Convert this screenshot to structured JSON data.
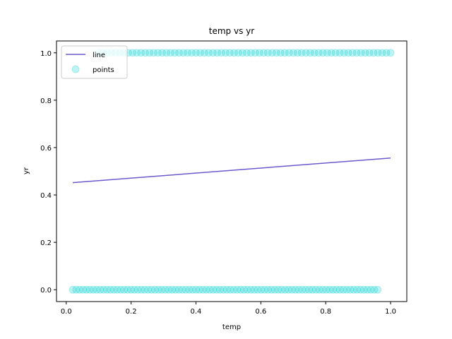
{
  "chart_data": {
    "type": "scatter",
    "title": "temp vs yr",
    "xlabel": "temp",
    "ylabel": "yr",
    "xlim": [
      -0.03,
      1.05
    ],
    "ylim": [
      -0.05,
      1.05
    ],
    "xticks": [
      0.0,
      0.2,
      0.4,
      0.6,
      0.8,
      1.0
    ],
    "yticks": [
      0.0,
      0.2,
      0.4,
      0.6,
      0.8,
      1.0
    ],
    "grid": false,
    "legend_position": "top-left",
    "series": [
      {
        "name": "line",
        "kind": "line",
        "color": "#6a5acd",
        "x": [
          0.02,
          1.0
        ],
        "y": [
          0.452,
          0.556
        ]
      },
      {
        "name": "points",
        "kind": "scatter",
        "color": "#00ced1",
        "opacity": 0.25,
        "groups": [
          {
            "y": 1.0,
            "x_min": 0.1,
            "x_max": 1.0,
            "count": 70
          },
          {
            "y": 0.0,
            "x_min": 0.02,
            "x_max": 0.96,
            "count": 90
          }
        ]
      }
    ]
  }
}
